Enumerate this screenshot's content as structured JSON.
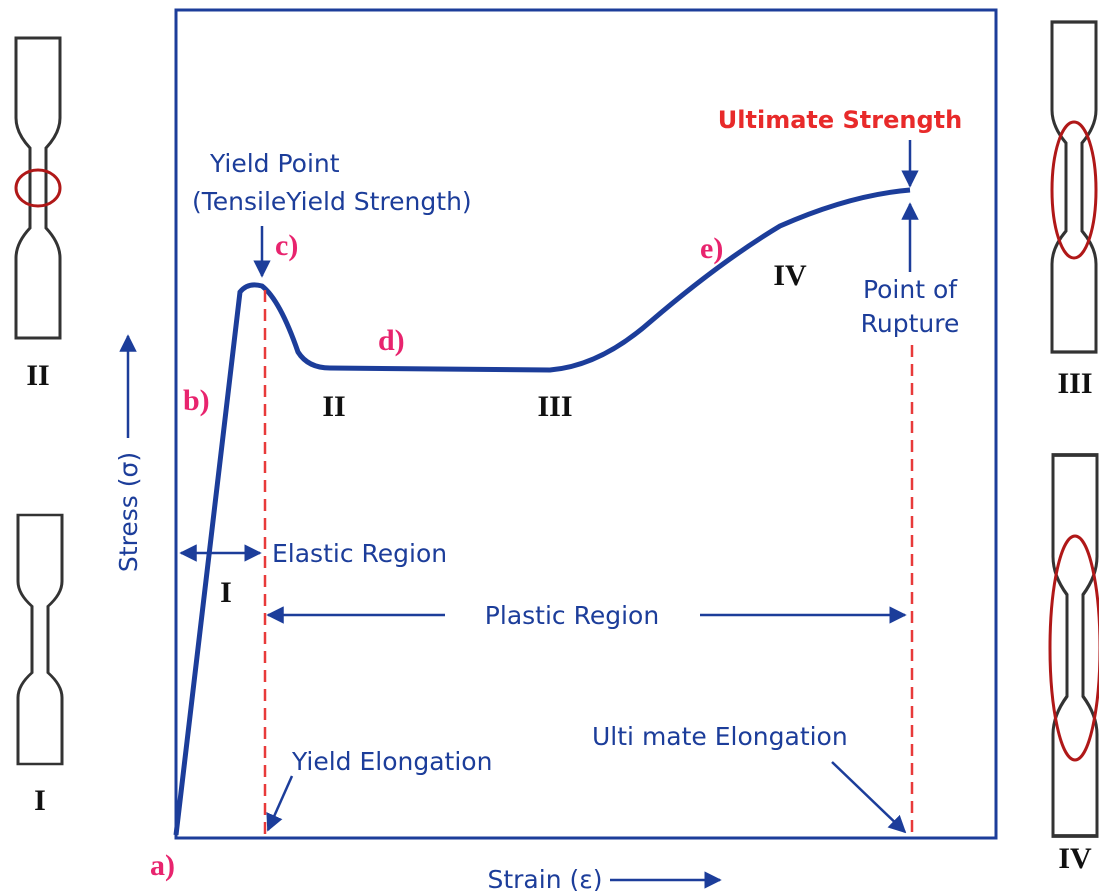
{
  "axes": {
    "y_label": "Stress (σ)",
    "x_label": "Strain (ε)"
  },
  "annotations": {
    "yield_point": [
      "Yield Point",
      "(TensileYield Strength)"
    ],
    "ultimate_strength": "Ultimate Strength",
    "point_of_rupture": [
      "Point of",
      "Rupture"
    ],
    "elastic_region": "Elastic Region",
    "plastic_region": "Plastic Region",
    "yield_elongation": "Yield Elongation",
    "ultimate_elongation": "Ulti mate Elongation"
  },
  "points": [
    "a)",
    "b)",
    "c)",
    "d)",
    "e)"
  ],
  "regions": [
    "I",
    "II",
    "III",
    "IV"
  ],
  "specimens": [
    {
      "label": "II"
    },
    {
      "label": "I"
    },
    {
      "label": "III"
    },
    {
      "label": "IV"
    }
  ]
}
